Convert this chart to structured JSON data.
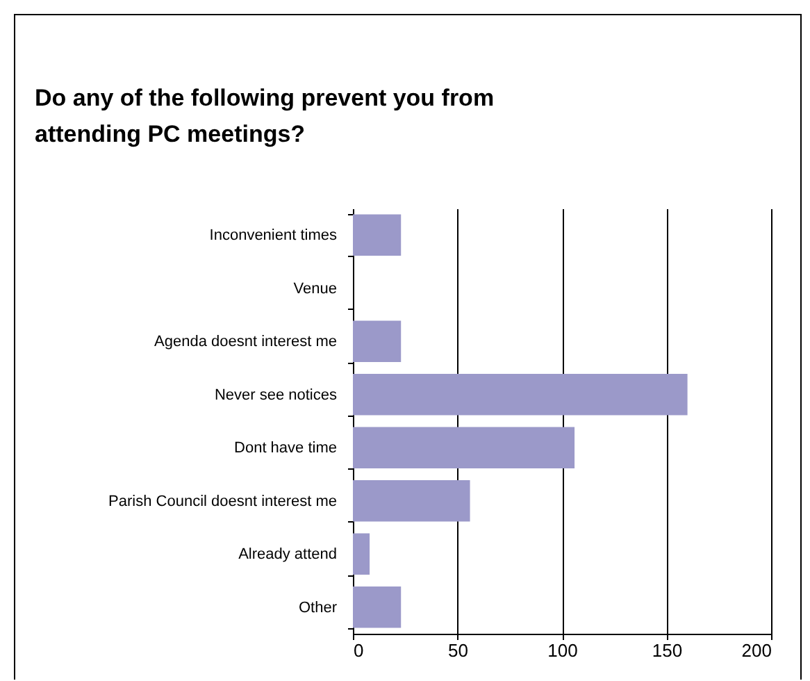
{
  "chart_data": {
    "type": "bar",
    "orientation": "horizontal",
    "title": "Do any of the following prevent you from\nattending PC meetings?",
    "categories": [
      "Inconvenient times",
      "Venue",
      "Agenda doesnt interest me",
      "Never see notices",
      "Dont have time",
      "Parish Council doesnt interest me",
      "Already attend",
      "Other"
    ],
    "values": [
      23,
      0,
      23,
      160,
      106,
      56,
      8,
      23
    ],
    "color": "#9b99c9",
    "xlim": [
      0,
      200
    ],
    "xticks": [
      0,
      50,
      100,
      150,
      200
    ],
    "grid": "x"
  }
}
